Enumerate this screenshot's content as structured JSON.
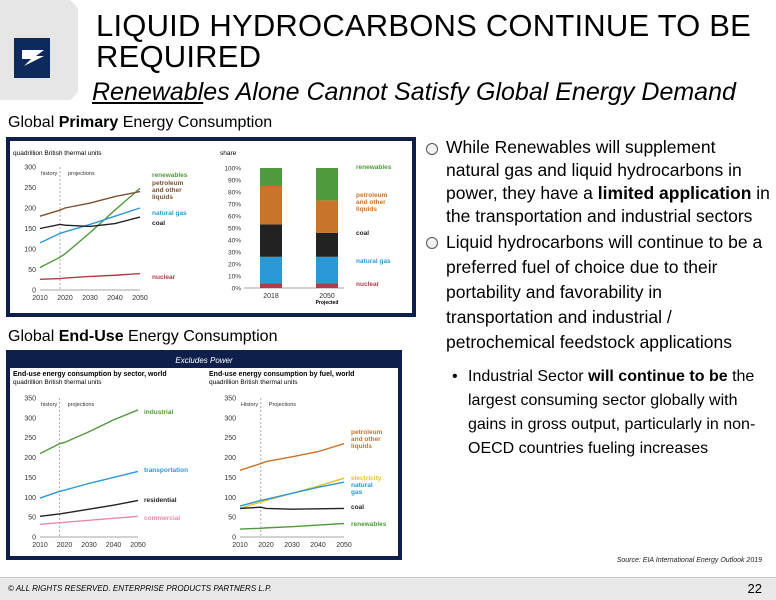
{
  "header": {
    "title": "LIQUID HYDROCARBONS CONTINUE TO BE REQUIRED",
    "subtitle_underlined": "Renewabl",
    "subtitle_rest": "es Alone Cannot Satisfy Global Energy Demand"
  },
  "section_primary": {
    "prefix": "Global ",
    "bold": "Primary",
    "suffix": " Energy Consumption"
  },
  "section_enduse": {
    "prefix": "Global ",
    "bold": "End-Use",
    "suffix": " Energy Consumption"
  },
  "excludes_power": "Excludes Power",
  "bullets": {
    "b1_pre": "While Renewables will supplement natural gas and liquid hydrocarbons in power, they have a ",
    "b1_bold": "limited application",
    "b1_post": " in the transportation and industrial sectors",
    "b2": "Liquid hydrocarbons will continue to be a preferred fuel of choice due to their portability and favorability in transportation and industrial / petrochemical feedstock applications",
    "sub_pre": "Industrial Sector ",
    "sub_bold": "will continue to be",
    "sub_post": " the largest consuming sector globally with gains in gross output, particularly in non-OECD countries fueling increases"
  },
  "source": "Source: EIA International Energy Outlook 2019",
  "footer": {
    "copyright": "© ALL RIGHTS RESERVED. ENTERPRISE PRODUCTS PARTNERS L.P.",
    "page": "22"
  },
  "colors": {
    "green": "#4f9a3c",
    "orange": "#c8742a",
    "brown": "#7a5230",
    "blue": "#2a9ad6",
    "black": "#222222",
    "red": "#b23b4a",
    "pink": "#e58aa8",
    "navy": "#0d1f4a"
  },
  "chart_data": [
    {
      "type": "line",
      "id": "primary_lines",
      "ylabel": "quadrillion British thermal units",
      "x": [
        2010,
        2018,
        2020,
        2030,
        2040,
        2050
      ],
      "xticks": [
        "2010",
        "2020",
        "2030",
        "2040",
        "2050"
      ],
      "ylim": [
        0,
        300
      ],
      "yticks": [
        "0",
        "50",
        "100",
        "150",
        "200",
        "250",
        "300"
      ],
      "history_label": "history",
      "projections_label": "projections",
      "divider_x": 2018,
      "series": [
        {
          "name": "renewables",
          "color": "#4f9a3c",
          "values": [
            55,
            80,
            88,
            140,
            195,
            248
          ]
        },
        {
          "name": "petroleum and other liquids",
          "color": "#7a5230",
          "values": [
            180,
            195,
            200,
            212,
            228,
            240
          ]
        },
        {
          "name": "natural gas",
          "color": "#2a9ad6",
          "values": [
            115,
            138,
            142,
            160,
            180,
            200
          ]
        },
        {
          "name": "coal",
          "color": "#222222",
          "values": [
            150,
            160,
            158,
            155,
            162,
            178
          ]
        },
        {
          "name": "nuclear",
          "color": "#b23b4a",
          "values": [
            26,
            28,
            29,
            33,
            36,
            40
          ]
        }
      ]
    },
    {
      "type": "bar",
      "id": "primary_share",
      "ylabel": "share",
      "categories": [
        "2018",
        "2050"
      ],
      "category_note": "Projected",
      "ylim": [
        0,
        100
      ],
      "yticks": [
        "0%",
        "10%",
        "20%",
        "30%",
        "40%",
        "50%",
        "60%",
        "70%",
        "80%",
        "90%",
        "100%"
      ],
      "series": [
        {
          "name": "nuclear",
          "color": "#b23b4a",
          "values": [
            4,
            4
          ]
        },
        {
          "name": "natural gas",
          "color": "#2a9ad6",
          "values": [
            22,
            22
          ]
        },
        {
          "name": "coal",
          "color": "#222222",
          "values": [
            27,
            20
          ]
        },
        {
          "name": "petroleum and other liquids",
          "color": "#c8742a",
          "values": [
            32,
            27
          ]
        },
        {
          "name": "renewables",
          "color": "#4f9a3c",
          "values": [
            15,
            27
          ]
        }
      ]
    },
    {
      "type": "line",
      "id": "enduse_sector",
      "title": "End-use energy consumption by sector, world",
      "ylabel": "quadrillion British thermal units",
      "x": [
        2010,
        2018,
        2020,
        2030,
        2040,
        2050
      ],
      "xticks": [
        "2010",
        "2020",
        "2030",
        "2040",
        "2050"
      ],
      "ylim": [
        0,
        350
      ],
      "yticks": [
        "0",
        "50",
        "100",
        "150",
        "200",
        "250",
        "300",
        "350"
      ],
      "history_label": "history",
      "projections_label": "projections",
      "divider_x": 2018,
      "series": [
        {
          "name": "industrial",
          "color": "#4f9a3c",
          "values": [
            210,
            235,
            238,
            265,
            295,
            320
          ]
        },
        {
          "name": "transportation",
          "color": "#2a9ad6",
          "values": [
            98,
            115,
            118,
            135,
            150,
            165
          ]
        },
        {
          "name": "residential",
          "color": "#222222",
          "values": [
            52,
            58,
            60,
            70,
            80,
            92
          ]
        },
        {
          "name": "commercial",
          "color": "#e58aa8",
          "values": [
            32,
            36,
            37,
            42,
            47,
            52
          ]
        }
      ]
    },
    {
      "type": "line",
      "id": "enduse_fuel",
      "title": "End-use energy consumption by fuel, world",
      "ylabel": "quadrillion British thermal units",
      "x": [
        2010,
        2018,
        2020,
        2030,
        2040,
        2050
      ],
      "xticks": [
        "2010",
        "2020",
        "2030",
        "2040",
        "2050"
      ],
      "ylim": [
        0,
        350
      ],
      "yticks": [
        "0",
        "50",
        "100",
        "150",
        "200",
        "250",
        "300",
        "350"
      ],
      "history_label": "History",
      "projections_label": "Projections",
      "divider_x": 2018,
      "series": [
        {
          "name": "petroleum and other liquids",
          "color": "#c8742a",
          "values": [
            168,
            185,
            190,
            202,
            215,
            235
          ]
        },
        {
          "name": "electricity",
          "color": "#e6c229",
          "values": [
            72,
            88,
            92,
            110,
            128,
            148
          ]
        },
        {
          "name": "natural gas",
          "color": "#2a9ad6",
          "values": [
            78,
            92,
            95,
            110,
            125,
            138
          ]
        },
        {
          "name": "coal",
          "color": "#222222",
          "values": [
            72,
            75,
            72,
            70,
            71,
            72
          ]
        },
        {
          "name": "renewables",
          "color": "#4f9a3c",
          "values": [
            20,
            22,
            23,
            26,
            30,
            34
          ]
        }
      ]
    }
  ]
}
